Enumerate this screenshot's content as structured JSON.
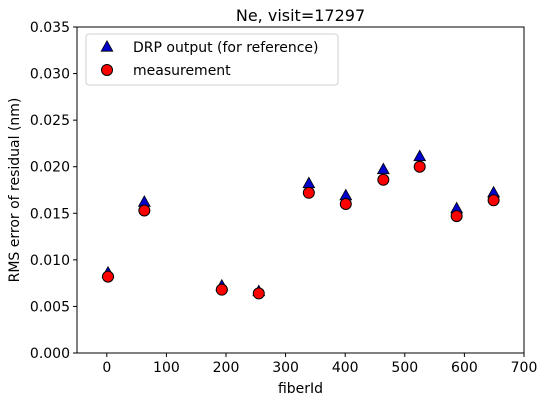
{
  "chart_data": {
    "type": "scatter",
    "title": "Ne, visit=17297",
    "xlabel": "fiberId",
    "ylabel": "RMS error of residual (nm)",
    "xlim": [
      -50,
      700
    ],
    "ylim": [
      0,
      0.035
    ],
    "xticks": [
      0,
      100,
      200,
      300,
      400,
      500,
      600,
      700
    ],
    "yticks": [
      0.0,
      0.005,
      0.01,
      0.015,
      0.02,
      0.025,
      0.03,
      0.035
    ],
    "xtick_labels": [
      "0",
      "100",
      "200",
      "300",
      "400",
      "500",
      "600",
      "700"
    ],
    "ytick_labels": [
      "0.000",
      "0.005",
      "0.010",
      "0.015",
      "0.020",
      "0.025",
      "0.030",
      "0.035"
    ],
    "grid": false,
    "legend_position": "upper-left",
    "series": [
      {
        "name": "DRP output (for reference)",
        "marker": "triangle",
        "color": "#0000cc",
        "x": [
          2,
          63,
          193,
          255,
          339,
          401,
          464,
          525,
          587,
          649
        ],
        "y": [
          0.0086,
          0.0162,
          0.0072,
          0.0066,
          0.0182,
          0.0169,
          0.0197,
          0.0211,
          0.0155,
          0.0172
        ]
      },
      {
        "name": "measurement",
        "marker": "circle",
        "color": "#ff0000",
        "x": [
          2,
          63,
          193,
          255,
          339,
          401,
          464,
          525,
          587,
          649
        ],
        "y": [
          0.0082,
          0.0153,
          0.0068,
          0.0064,
          0.0172,
          0.016,
          0.0186,
          0.02,
          0.0147,
          0.0164
        ]
      }
    ]
  }
}
